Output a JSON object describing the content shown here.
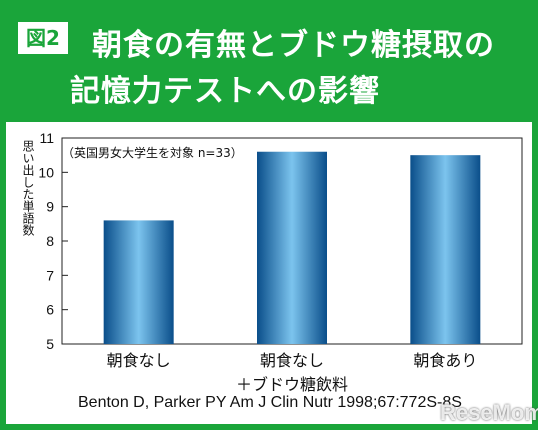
{
  "figure_label": "図2",
  "title_line1": "朝食の有無とブドウ糖摂取の",
  "title_line2": "記憶力テストへの影響",
  "note": "（英国男女大学生を対象 n=33）",
  "citation": "Benton D, Parker PY Am J Clin Nutr 1998;67:772S-8S",
  "watermark": "ReseMom",
  "colors": {
    "frame": "#1aa53a",
    "bar_dark": "#0a4e8a",
    "bar_light": "#7cc4ee"
  },
  "chart_data": {
    "type": "bar",
    "ylabel": "思い出した単語数",
    "ylim": [
      5,
      11
    ],
    "yticks": [
      "5",
      "6",
      "7",
      "8",
      "9",
      "10",
      "11"
    ],
    "categories": [
      [
        "朝食なし"
      ],
      [
        "朝食なし",
        "＋ブドウ糖飲料"
      ],
      [
        "朝食あり"
      ]
    ],
    "values": [
      8.6,
      10.6,
      10.5
    ],
    "grid": false
  }
}
